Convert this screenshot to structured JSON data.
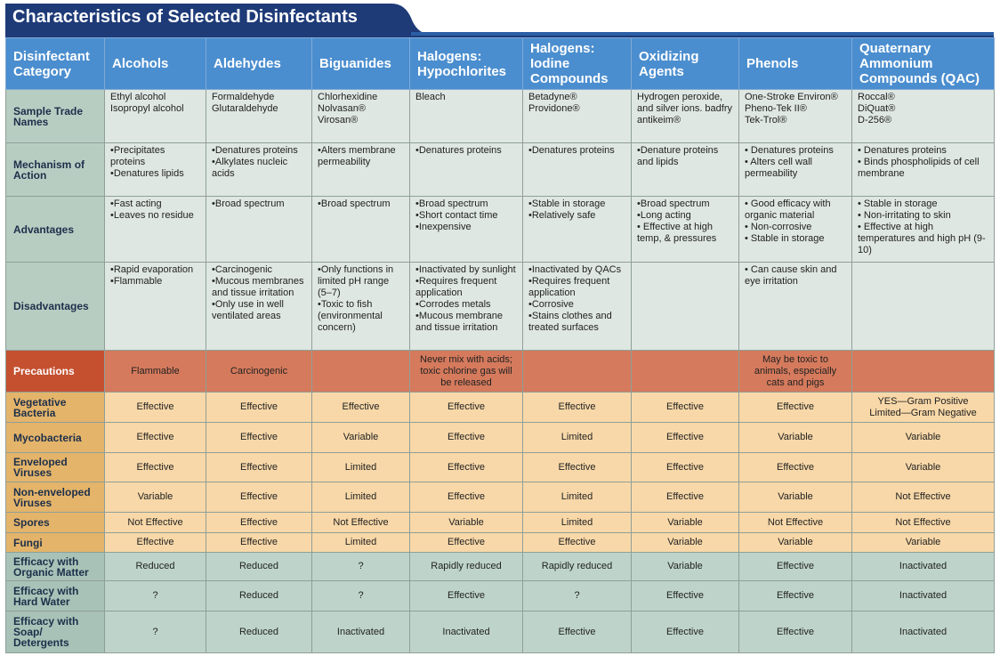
{
  "header": {
    "title": "Characteristics of Selected Disinfectants"
  },
  "table": {
    "header_color": "#4b8ecf",
    "columns": [
      "Disinfectant Category",
      "Alcohols",
      "Aldehydes",
      "Biguanides",
      "Halogens: Hypochlorites",
      "Halogens: Iodine Compounds",
      "Oxidizing Agents",
      "Phenols",
      "Quaternary Ammonium Compounds (QAC)"
    ],
    "rows": [
      {
        "label": "Sample Trade Names",
        "label_color": "#b7cdc2",
        "color": "#dfe7e2",
        "cells": [
          [
            "Ethyl alcohol",
            "Isopropyl alcohol"
          ],
          [
            "Formaldehyde",
            "Glutaraldehyde"
          ],
          [
            "Chlorhexidine",
            "Nolvasan®",
            "Virosan®"
          ],
          [
            "Bleach"
          ],
          [
            "Betadyne®",
            "Providone®"
          ],
          [
            "Hydrogen peroxide, and silver ions. badfry antikeim®"
          ],
          [
            "One-Stroke Environ®",
            "Pheno-Tek II®",
            "Tek-Trol®"
          ],
          [
            "Roccal®",
            "DiQuat®",
            "D-256®"
          ]
        ]
      },
      {
        "label": "Mechanism of Action",
        "label_color": "#b7cdc2",
        "color": "#dfe7e2",
        "cells": [
          [
            "•Precipitates proteins",
            "•Denatures lipids"
          ],
          [
            "•Denatures proteins",
            "•Alkylates nucleic acids"
          ],
          [
            "•Alters membrane permeability"
          ],
          [
            "•Denatures proteins"
          ],
          [
            "•Denatures proteins"
          ],
          [
            "•Denature proteins and lipids"
          ],
          [
            "• Denatures proteins",
            "• Alters cell wall permeability"
          ],
          [
            "• Denatures proteins",
            "• Binds phospholipids of cell membrane"
          ]
        ]
      },
      {
        "label": "Advantages",
        "label_color": "#b7cdc2",
        "color": "#dfe7e2",
        "cells": [
          [
            "•Fast acting",
            "•Leaves no residue"
          ],
          [
            "•Broad spectrum"
          ],
          [
            "•Broad spectrum"
          ],
          [
            "•Broad spectrum",
            "•Short contact time",
            "•Inexpensive"
          ],
          [
            "•Stable in storage",
            "•Relatively safe"
          ],
          [
            "•Broad spectrum",
            "•Long acting",
            "• Effective at high temp, & pressures"
          ],
          [
            "• Good efficacy with organic material",
            "• Non-corrosive",
            "• Stable in storage"
          ],
          [
            "• Stable in storage",
            "• Non-irritating to skin",
            "• Effective at high temperatures and high pH (9-10)"
          ]
        ]
      },
      {
        "label": "Disadvantages",
        "label_color": "#b7cdc2",
        "color": "#dfe7e2",
        "cells": [
          [
            "•Rapid evaporation",
            "•Flammable"
          ],
          [
            "•Carcinogenic",
            "•Mucous membranes and tissue irritation",
            "•Only use in well ventilated areas"
          ],
          [
            "•Only functions in limited pH range (5–7)",
            "•Toxic to fish (environmental concern)"
          ],
          [
            "•Inactivated by sunlight",
            "•Requires frequent application",
            "•Corrodes metals",
            "•Mucous membrane and tissue irritation"
          ],
          [
            "•Inactivated by QACs",
            "•Requires frequent application",
            "•Corrosive",
            "•Stains clothes and treated surfaces"
          ],
          [],
          [
            "• Can cause skin and eye irritation"
          ],
          []
        ]
      },
      {
        "label": "Precautions",
        "label_color": "#c4502f",
        "color": "#d57a5c",
        "cells": [
          [
            "Flammable"
          ],
          [
            "Carcinogenic"
          ],
          [],
          [
            "Never mix with acids; toxic chlorine gas will be released"
          ],
          [],
          [],
          [
            "May be toxic to animals, especially cats and pigs"
          ],
          []
        ]
      },
      {
        "label": "Vegetative Bacteria",
        "label_color": "#e4b46a",
        "color": "#f8d8a8",
        "cells": [
          [
            "Effective"
          ],
          [
            "Effective"
          ],
          [
            "Effective"
          ],
          [
            "Effective"
          ],
          [
            "Effective"
          ],
          [
            "Effective"
          ],
          [
            "Effective"
          ],
          [
            "YES—Gram Positive",
            "Limited—Gram Negative"
          ]
        ]
      },
      {
        "label": "Mycobacteria",
        "label_color": "#e4b46a",
        "color": "#f8d8a8",
        "cells": [
          [
            "Effective"
          ],
          [
            "Effective"
          ],
          [
            "Variable"
          ],
          [
            "Effective"
          ],
          [
            "Limited"
          ],
          [
            "Effective"
          ],
          [
            "Variable"
          ],
          [
            "Variable"
          ]
        ]
      },
      {
        "label": "Enveloped Viruses",
        "label_color": "#e4b46a",
        "color": "#f8d8a8",
        "cells": [
          [
            "Effective"
          ],
          [
            "Effective"
          ],
          [
            "Limited"
          ],
          [
            "Effective"
          ],
          [
            "Effective"
          ],
          [
            "Effective"
          ],
          [
            "Effective"
          ],
          [
            "Variable"
          ]
        ]
      },
      {
        "label": "Non-enveloped Viruses",
        "label_color": "#e4b46a",
        "color": "#f8d8a8",
        "cells": [
          [
            "Variable"
          ],
          [
            "Effective"
          ],
          [
            "Limited"
          ],
          [
            "Effective"
          ],
          [
            "Limited"
          ],
          [
            "Effective"
          ],
          [
            "Variable"
          ],
          [
            "Not Effective"
          ]
        ]
      },
      {
        "label": "Spores",
        "label_color": "#e4b46a",
        "color": "#f8d8a8",
        "cells": [
          [
            "Not Effective"
          ],
          [
            "Effective"
          ],
          [
            "Not Effective"
          ],
          [
            "Variable"
          ],
          [
            "Limited"
          ],
          [
            "Variable"
          ],
          [
            "Not Effective"
          ],
          [
            "Not Effective"
          ]
        ]
      },
      {
        "label": "Fungi",
        "label_color": "#e4b46a",
        "color": "#f8d8a8",
        "cells": [
          [
            "Effective"
          ],
          [
            "Effective"
          ],
          [
            "Limited"
          ],
          [
            "Effective"
          ],
          [
            "Effective"
          ],
          [
            "Variable"
          ],
          [
            "Variable"
          ],
          [
            "Variable"
          ]
        ]
      },
      {
        "label": "Efficacy with Organic Matter",
        "label_color": "#a8c2b7",
        "color": "#bed4cb",
        "cells": [
          [
            "Reduced"
          ],
          [
            "Reduced"
          ],
          [
            "?"
          ],
          [
            "Rapidly reduced"
          ],
          [
            "Rapidly reduced"
          ],
          [
            "Variable"
          ],
          [
            "Effective"
          ],
          [
            "Inactivated"
          ]
        ]
      },
      {
        "label": "Efficacy with Hard Water",
        "label_color": "#a8c2b7",
        "color": "#bed4cb",
        "cells": [
          [
            "?"
          ],
          [
            "Reduced"
          ],
          [
            "?"
          ],
          [
            "Effective"
          ],
          [
            "?"
          ],
          [
            "Effective"
          ],
          [
            "Effective"
          ],
          [
            "Inactivated"
          ]
        ]
      },
      {
        "label": "Efficacy with Soap/ Detergents",
        "label_color": "#a8c2b7",
        "color": "#bed4cb",
        "cells": [
          [
            "?"
          ],
          [
            "Reduced"
          ],
          [
            "Inactivated"
          ],
          [
            "Inactivated"
          ],
          [
            "Effective"
          ],
          [
            "Effective"
          ],
          [
            "Effective"
          ],
          [
            "Inactivated"
          ]
        ]
      }
    ]
  }
}
